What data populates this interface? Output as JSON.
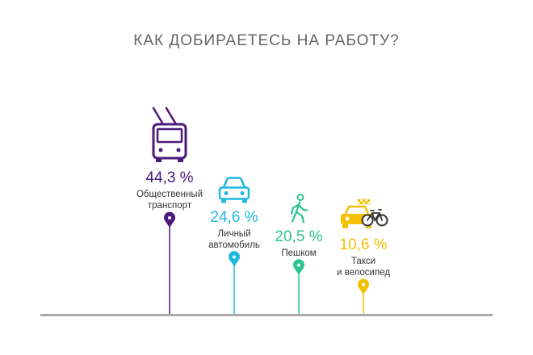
{
  "chart_data": {
    "type": "bar",
    "title": "КАК ДОБИРАЕТЕСЬ НА РАБОТУ?",
    "unit": "%",
    "categories": [
      [
        "Общественный",
        "транспорт"
      ],
      [
        "Личный",
        "автомобиль"
      ],
      [
        "Пешком"
      ],
      [
        "Такси",
        "и велосипед"
      ]
    ],
    "values": [
      44.3,
      24.6,
      20.5,
      10.6
    ],
    "value_labels": [
      "44,3 %",
      "24,6 %",
      "20,5 %",
      "10,6 %"
    ],
    "colors": [
      "#4b1a7a",
      "#1fb8e0",
      "#2bc493",
      "#f5c000"
    ],
    "icons": [
      "trolleybus-icon",
      "car-icon",
      "pedestrian-icon",
      "taxi-bicycle-icon"
    ]
  }
}
